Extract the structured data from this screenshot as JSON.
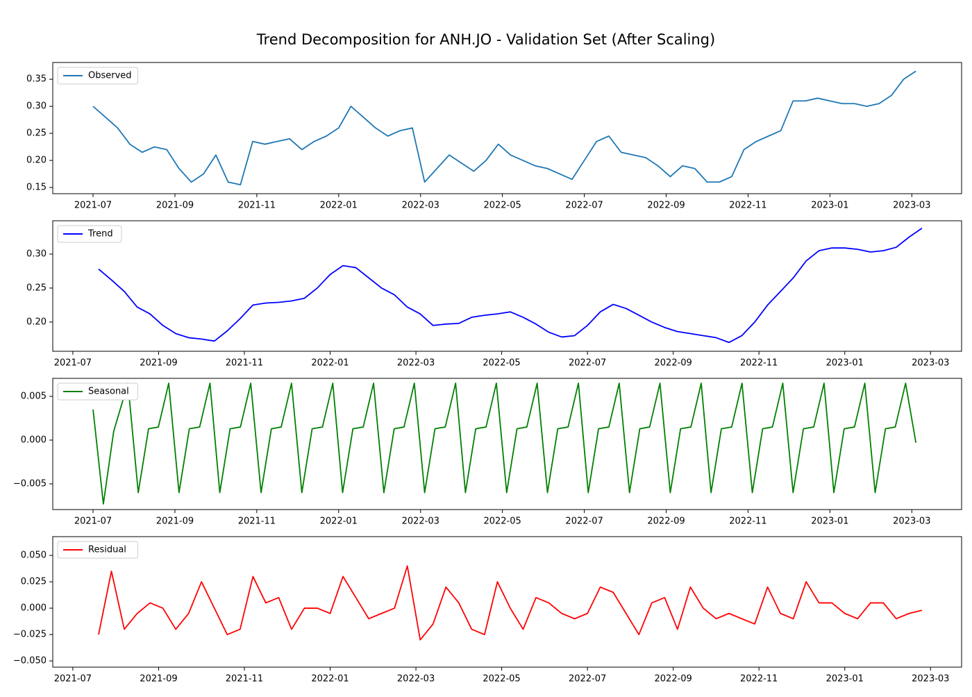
{
  "title": "Trend Decomposition for ANH.JO - Validation Set (After Scaling)",
  "chart_data": [
    {
      "type": "line",
      "legend": "upper left",
      "xlim": [
        2021.418,
        2023.268
      ],
      "ylim": [
        0.1385,
        0.381
      ],
      "xticks": [
        {
          "value": 2021.5,
          "label": "2021-07"
        },
        {
          "value": 2021.6667,
          "label": "2021-09"
        },
        {
          "value": 2021.8333,
          "label": "2021-11"
        },
        {
          "value": 2022.0,
          "label": "2022-01"
        },
        {
          "value": 2022.1667,
          "label": "2022-03"
        },
        {
          "value": 2022.3333,
          "label": "2022-05"
        },
        {
          "value": 2022.5,
          "label": "2022-07"
        },
        {
          "value": 2022.6667,
          "label": "2022-09"
        },
        {
          "value": 2022.8333,
          "label": "2022-11"
        },
        {
          "value": 2023.0,
          "label": "2023-01"
        },
        {
          "value": 2023.1667,
          "label": "2023-03"
        }
      ],
      "yticks": [
        {
          "value": 0.15,
          "label": "0.15"
        },
        {
          "value": 0.2,
          "label": "0.20"
        },
        {
          "value": 0.25,
          "label": "0.25"
        },
        {
          "value": 0.3,
          "label": "0.30"
        },
        {
          "value": 0.35,
          "label": "0.35"
        }
      ],
      "x": [
        2021.5,
        2021.525,
        2021.55,
        2021.575,
        2021.6,
        2021.625,
        2021.65,
        2021.675,
        2021.7,
        2021.725,
        2021.75,
        2021.775,
        2021.8,
        2021.825,
        2021.85,
        2021.875,
        2021.9,
        2021.925,
        2021.95,
        2021.975,
        2022.0,
        2022.025,
        2022.05,
        2022.075,
        2022.1,
        2022.125,
        2022.15,
        2022.175,
        2022.2,
        2022.225,
        2022.25,
        2022.275,
        2022.3,
        2022.325,
        2022.35,
        2022.375,
        2022.4,
        2022.425,
        2022.45,
        2022.475,
        2022.5,
        2022.525,
        2022.55,
        2022.575,
        2022.6,
        2022.625,
        2022.65,
        2022.675,
        2022.7,
        2022.725,
        2022.75,
        2022.775,
        2022.8,
        2022.825,
        2022.85,
        2022.875,
        2022.9,
        2022.925,
        2022.95,
        2022.975,
        2023.0,
        2023.025,
        2023.05,
        2023.075,
        2023.1,
        2023.125,
        2023.15,
        2023.175
      ],
      "series": [
        {
          "name": "Observed",
          "color": "#1f77b4",
          "values": [
            0.3,
            0.28,
            0.26,
            0.23,
            0.215,
            0.225,
            0.22,
            0.185,
            0.16,
            0.175,
            0.21,
            0.16,
            0.155,
            0.235,
            0.23,
            0.235,
            0.24,
            0.22,
            0.235,
            0.245,
            0.26,
            0.3,
            0.28,
            0.26,
            0.245,
            0.255,
            0.26,
            0.16,
            0.185,
            0.21,
            0.195,
            0.18,
            0.2,
            0.23,
            0.21,
            0.2,
            0.19,
            0.185,
            0.175,
            0.165,
            0.2,
            0.235,
            0.245,
            0.215,
            0.21,
            0.205,
            0.19,
            0.17,
            0.19,
            0.185,
            0.16,
            0.16,
            0.17,
            0.22,
            0.235,
            0.245,
            0.255,
            0.31,
            0.31,
            0.315,
            0.31,
            0.305,
            0.305,
            0.3,
            0.305,
            0.32,
            0.35,
            0.365
          ]
        }
      ]
    },
    {
      "type": "line",
      "legend": "upper left",
      "xlim": [
        2021.461,
        2023.227
      ],
      "ylim": [
        0.157,
        0.349
      ],
      "xticks": [
        {
          "value": 2021.5,
          "label": "2021-07"
        },
        {
          "value": 2021.6667,
          "label": "2021-09"
        },
        {
          "value": 2021.8333,
          "label": "2021-11"
        },
        {
          "value": 2022.0,
          "label": "2022-01"
        },
        {
          "value": 2022.1667,
          "label": "2022-03"
        },
        {
          "value": 2022.3333,
          "label": "2022-05"
        },
        {
          "value": 2022.5,
          "label": "2022-07"
        },
        {
          "value": 2022.6667,
          "label": "2022-09"
        },
        {
          "value": 2022.8333,
          "label": "2022-11"
        },
        {
          "value": 2023.0,
          "label": "2023-01"
        },
        {
          "value": 2023.1667,
          "label": "2023-03"
        }
      ],
      "yticks": [
        {
          "value": 0.2,
          "label": "0.20"
        },
        {
          "value": 0.25,
          "label": "0.25"
        },
        {
          "value": 0.3,
          "label": "0.30"
        }
      ],
      "x": [
        2021.55,
        2021.575,
        2021.6,
        2021.625,
        2021.65,
        2021.675,
        2021.7,
        2021.725,
        2021.75,
        2021.775,
        2021.8,
        2021.825,
        2021.85,
        2021.875,
        2021.9,
        2021.925,
        2021.95,
        2021.975,
        2022.0,
        2022.025,
        2022.05,
        2022.075,
        2022.1,
        2022.125,
        2022.15,
        2022.175,
        2022.2,
        2022.225,
        2022.25,
        2022.275,
        2022.3,
        2022.325,
        2022.35,
        2022.375,
        2022.4,
        2022.425,
        2022.45,
        2022.475,
        2022.5,
        2022.525,
        2022.55,
        2022.575,
        2022.6,
        2022.625,
        2022.65,
        2022.675,
        2022.7,
        2022.725,
        2022.75,
        2022.775,
        2022.8,
        2022.825,
        2022.85,
        2022.875,
        2022.9,
        2022.925,
        2022.95,
        2022.975,
        2023.0,
        2023.025,
        2023.05,
        2023.075,
        2023.1,
        2023.125,
        2023.15
      ],
      "series": [
        {
          "name": "Trend",
          "color": "#0000ff",
          "values": [
            0.278,
            0.262,
            0.245,
            0.222,
            0.212,
            0.195,
            0.183,
            0.177,
            0.175,
            0.172,
            0.187,
            0.205,
            0.225,
            0.228,
            0.229,
            0.231,
            0.235,
            0.25,
            0.27,
            0.283,
            0.28,
            0.265,
            0.25,
            0.24,
            0.222,
            0.212,
            0.195,
            0.197,
            0.198,
            0.207,
            0.21,
            0.212,
            0.215,
            0.207,
            0.197,
            0.185,
            0.178,
            0.18,
            0.195,
            0.215,
            0.226,
            0.22,
            0.21,
            0.2,
            0.192,
            0.186,
            0.183,
            0.18,
            0.177,
            0.17,
            0.18,
            0.2,
            0.225,
            0.245,
            0.265,
            0.29,
            0.305,
            0.309,
            0.309,
            0.307,
            0.303,
            0.305,
            0.31,
            0.325,
            0.338
          ]
        }
      ]
    },
    {
      "type": "line",
      "legend": "upper left",
      "xlim": [
        2021.418,
        2023.268
      ],
      "ylim": [
        -0.00794,
        0.00706
      ],
      "xticks": [
        {
          "value": 2021.5,
          "label": "2021-07"
        },
        {
          "value": 2021.6667,
          "label": "2021-09"
        },
        {
          "value": 2021.8333,
          "label": "2021-11"
        },
        {
          "value": 2022.0,
          "label": "2022-01"
        },
        {
          "value": 2022.1667,
          "label": "2022-03"
        },
        {
          "value": 2022.3333,
          "label": "2022-05"
        },
        {
          "value": 2022.5,
          "label": "2022-07"
        },
        {
          "value": 2022.6667,
          "label": "2022-09"
        },
        {
          "value": 2022.8333,
          "label": "2022-11"
        },
        {
          "value": 2023.0,
          "label": "2023-01"
        },
        {
          "value": 2023.1667,
          "label": "2023-03"
        }
      ],
      "yticks": [
        {
          "value": -0.005,
          "label": "−0.005"
        },
        {
          "value": 0,
          "label": "0.000"
        },
        {
          "value": 0.005,
          "label": "0.005"
        }
      ],
      "x": [
        2021.5,
        2021.521,
        2021.542,
        2021.571,
        2021.592,
        2021.613,
        2021.633,
        2021.654,
        2021.675,
        2021.696,
        2021.717,
        2021.738,
        2021.758,
        2021.779,
        2021.8,
        2021.821,
        2021.842,
        2021.863,
        2021.883,
        2021.904,
        2021.925,
        2021.946,
        2021.967,
        2021.988,
        2022.008,
        2022.029,
        2022.05,
        2022.071,
        2022.092,
        2022.113,
        2022.133,
        2022.154,
        2022.175,
        2022.196,
        2022.217,
        2022.238,
        2022.258,
        2022.279,
        2022.3,
        2022.321,
        2022.342,
        2022.363,
        2022.383,
        2022.404,
        2022.425,
        2022.446,
        2022.467,
        2022.488,
        2022.508,
        2022.529,
        2022.55,
        2022.571,
        2022.592,
        2022.613,
        2022.633,
        2022.654,
        2022.675,
        2022.696,
        2022.717,
        2022.738,
        2022.758,
        2022.779,
        2022.8,
        2022.821,
        2022.842,
        2022.863,
        2022.883,
        2022.904,
        2022.925,
        2022.946,
        2022.967,
        2022.988,
        2023.008,
        2023.029,
        2023.05,
        2023.071,
        2023.092,
        2023.113,
        2023.133,
        2023.154,
        2023.175
      ],
      "series": [
        {
          "name": "Seasonal",
          "color": "#008000",
          "values": [
            0.0035,
            -0.0073,
            0.001,
            0.0065,
            -0.006,
            0.0013,
            0.0015,
            0.0065,
            -0.006,
            0.0013,
            0.0015,
            0.0065,
            -0.006,
            0.0013,
            0.0015,
            0.0065,
            -0.006,
            0.0013,
            0.0015,
            0.0065,
            -0.006,
            0.0013,
            0.0015,
            0.0065,
            -0.006,
            0.0013,
            0.0015,
            0.0065,
            -0.006,
            0.0013,
            0.0015,
            0.0065,
            -0.006,
            0.0013,
            0.0015,
            0.0065,
            -0.006,
            0.0013,
            0.0015,
            0.0065,
            -0.006,
            0.0013,
            0.0015,
            0.0065,
            -0.006,
            0.0013,
            0.0015,
            0.0065,
            -0.006,
            0.0013,
            0.0015,
            0.0065,
            -0.006,
            0.0013,
            0.0015,
            0.0065,
            -0.006,
            0.0013,
            0.0015,
            0.0065,
            -0.006,
            0.0013,
            0.0015,
            0.0065,
            -0.006,
            0.0013,
            0.0015,
            0.0065,
            -0.006,
            0.0013,
            0.0015,
            0.0065,
            -0.006,
            0.0013,
            0.0015,
            0.0065,
            -0.006,
            0.0013,
            0.0015,
            0.0065,
            -0.0003
          ]
        }
      ]
    },
    {
      "type": "line",
      "legend": "upper left",
      "xlim": [
        2021.461,
        2023.227
      ],
      "ylim": [
        -0.0559,
        0.0678
      ],
      "xticks": [
        {
          "value": 2021.5,
          "label": "2021-07"
        },
        {
          "value": 2021.6667,
          "label": "2021-09"
        },
        {
          "value": 2021.8333,
          "label": "2021-11"
        },
        {
          "value": 2022.0,
          "label": "2022-01"
        },
        {
          "value": 2022.1667,
          "label": "2022-03"
        },
        {
          "value": 2022.3333,
          "label": "2022-05"
        },
        {
          "value": 2022.5,
          "label": "2022-07"
        },
        {
          "value": 2022.6667,
          "label": "2022-09"
        },
        {
          "value": 2022.8333,
          "label": "2022-11"
        },
        {
          "value": 2023.0,
          "label": "2023-01"
        },
        {
          "value": 2023.1667,
          "label": "2023-03"
        }
      ],
      "yticks": [
        {
          "value": -0.05,
          "label": "−0.050"
        },
        {
          "value": -0.025,
          "label": "−0.025"
        },
        {
          "value": 0,
          "label": "0.000"
        },
        {
          "value": 0.025,
          "label": "0.025"
        },
        {
          "value": 0.05,
          "label": "0.050"
        }
      ],
      "x": [
        2021.55,
        2021.575,
        2021.6,
        2021.625,
        2021.65,
        2021.675,
        2021.7,
        2021.725,
        2021.75,
        2021.775,
        2021.8,
        2021.825,
        2021.85,
        2021.875,
        2021.9,
        2021.925,
        2021.95,
        2021.975,
        2022.0,
        2022.025,
        2022.05,
        2022.075,
        2022.1,
        2022.125,
        2022.15,
        2022.175,
        2022.2,
        2022.225,
        2022.25,
        2022.275,
        2022.3,
        2022.325,
        2022.35,
        2022.375,
        2022.4,
        2022.425,
        2022.45,
        2022.475,
        2022.5,
        2022.525,
        2022.55,
        2022.575,
        2022.6,
        2022.625,
        2022.65,
        2022.675,
        2022.7,
        2022.725,
        2022.75,
        2022.775,
        2022.8,
        2022.825,
        2022.85,
        2022.875,
        2022.9,
        2022.925,
        2022.95,
        2022.975,
        2023.0,
        2023.025,
        2023.05,
        2023.075,
        2023.1,
        2023.125,
        2023.15
      ],
      "series": [
        {
          "name": "Residual",
          "color": "#ff0000",
          "values": [
            -0.025,
            0.035,
            -0.02,
            -0.005,
            0.005,
            0.0,
            -0.02,
            -0.005,
            0.025,
            0.0,
            -0.025,
            -0.02,
            0.03,
            0.005,
            0.01,
            -0.02,
            0.0,
            0.0,
            -0.005,
            0.03,
            0.01,
            -0.01,
            -0.005,
            0.0,
            0.04,
            -0.03,
            -0.015,
            0.02,
            0.005,
            -0.02,
            -0.025,
            0.025,
            0.0,
            -0.02,
            0.01,
            0.005,
            -0.005,
            -0.01,
            -0.005,
            0.02,
            0.015,
            -0.005,
            -0.025,
            0.005,
            0.01,
            -0.02,
            0.02,
            0.0,
            -0.01,
            -0.005,
            -0.01,
            -0.015,
            0.02,
            -0.005,
            -0.01,
            0.025,
            0.005,
            0.005,
            -0.005,
            -0.01,
            0.005,
            0.005,
            -0.01,
            -0.005,
            -0.002
          ]
        }
      ]
    }
  ]
}
